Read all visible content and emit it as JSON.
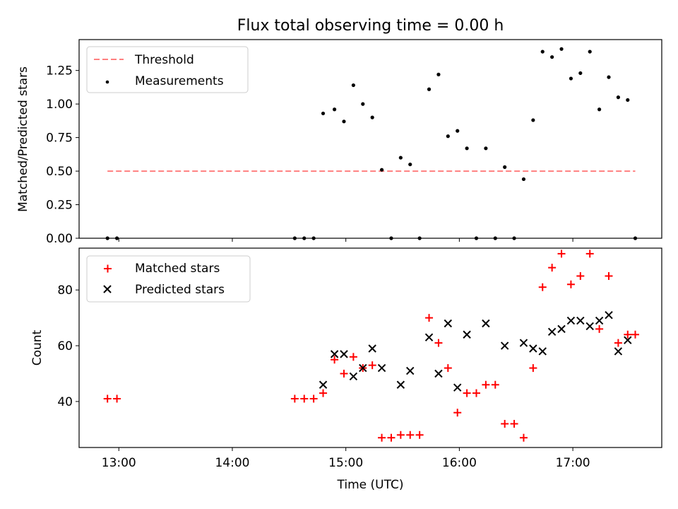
{
  "chart_data": [
    {
      "type": "scatter",
      "title": "Flux total observing time = 0.00 h",
      "xlabel": "",
      "ylabel": "Matched/Predicted stars",
      "xlim": [
        "12:39",
        "17:47"
      ],
      "ylim": [
        0,
        1.48
      ],
      "yticks": [
        0,
        0.25,
        0.5,
        0.75,
        1.0,
        1.25
      ],
      "ytick_labels": [
        "0.00",
        "0.25",
        "0.50",
        "0.75",
        "1.00",
        "1.25"
      ],
      "grid": false,
      "legend": "top-left",
      "series": [
        {
          "name": "Threshold",
          "kind": "dashed-line",
          "color": "#ff7f7f",
          "x": [
            "12:54",
            "17:33"
          ],
          "y": [
            0.5,
            0.5
          ]
        },
        {
          "name": "Measurements",
          "kind": "dots",
          "color": "#000000",
          "x": [
            "12:54",
            "12:59",
            "14:33",
            "14:38",
            "14:43",
            "14:48",
            "14:54",
            "14:59",
            "15:04",
            "15:09",
            "15:14",
            "15:19",
            "15:24",
            "15:29",
            "15:34",
            "15:39",
            "15:44",
            "15:49",
            "15:54",
            "15:59",
            "16:04",
            "16:09",
            "16:14",
            "16:19",
            "16:24",
            "16:29",
            "16:34",
            "16:39",
            "16:44",
            "16:49",
            "16:54",
            "16:59",
            "17:04",
            "17:09",
            "17:14",
            "17:19",
            "17:24",
            "17:29",
            "17:33"
          ],
          "y": [
            0,
            0,
            0,
            0,
            0,
            0.93,
            0.96,
            0.87,
            1.14,
            1.0,
            0.9,
            0.51,
            0,
            0.6,
            0.55,
            0,
            1.11,
            1.22,
            0.76,
            0.8,
            0.67,
            0,
            0.67,
            0,
            0.53,
            0,
            0.44,
            0.88,
            1.39,
            1.35,
            1.41,
            1.19,
            1.23,
            1.39,
            0.96,
            1.2,
            1.05,
            1.03,
            0
          ]
        }
      ]
    },
    {
      "type": "scatter",
      "title": "",
      "xlabel": "Time (UTC)",
      "ylabel": "Count",
      "xlim": [
        "12:39",
        "17:47"
      ],
      "ylim": [
        23.5,
        95
      ],
      "yticks": [
        40,
        60,
        80
      ],
      "ytick_labels": [
        "40",
        "60",
        "80"
      ],
      "xticks": [
        "13:00",
        "14:00",
        "15:00",
        "16:00",
        "17:00"
      ],
      "xtick_labels": [
        "13:00",
        "14:00",
        "15:00",
        "16:00",
        "17:00"
      ],
      "grid": false,
      "legend": "top-left",
      "series": [
        {
          "name": "Matched stars",
          "marker": "plus",
          "color": "#ff0000",
          "x": [
            "12:54",
            "12:59",
            "14:33",
            "14:38",
            "14:43",
            "14:48",
            "14:54",
            "14:59",
            "15:04",
            "15:09",
            "15:14",
            "15:19",
            "15:24",
            "15:29",
            "15:34",
            "15:39",
            "15:44",
            "15:49",
            "15:54",
            "15:59",
            "16:04",
            "16:09",
            "16:14",
            "16:19",
            "16:24",
            "16:29",
            "16:34",
            "16:39",
            "16:44",
            "16:49",
            "16:54",
            "16:59",
            "17:04",
            "17:09",
            "17:14",
            "17:19",
            "17:24",
            "17:29",
            "17:33"
          ],
          "y": [
            41,
            41,
            41,
            41,
            41,
            43,
            55,
            50,
            56,
            52,
            53,
            27,
            27,
            28,
            28,
            28,
            70,
            61,
            52,
            36,
            43,
            43,
            46,
            46,
            32,
            32,
            27,
            52,
            81,
            88,
            93,
            82,
            85,
            93,
            66,
            85,
            61,
            64,
            64
          ]
        },
        {
          "name": "Predicted stars",
          "marker": "cross",
          "color": "#000000",
          "x": [
            "14:48",
            "14:54",
            "14:59",
            "15:04",
            "15:09",
            "15:14",
            "15:19",
            "15:29",
            "15:34",
            "15:44",
            "15:49",
            "15:54",
            "15:59",
            "16:04",
            "16:14",
            "16:24",
            "16:34",
            "16:39",
            "16:44",
            "16:49",
            "16:54",
            "16:59",
            "17:04",
            "17:09",
            "17:14",
            "17:19",
            "17:24",
            "17:29"
          ],
          "y": [
            46,
            57,
            57,
            49,
            52,
            59,
            52,
            46,
            51,
            63,
            50,
            68,
            45,
            64,
            68,
            60,
            61,
            59,
            58,
            65,
            66,
            69,
            69,
            67,
            69,
            71,
            58,
            62
          ]
        }
      ]
    }
  ]
}
